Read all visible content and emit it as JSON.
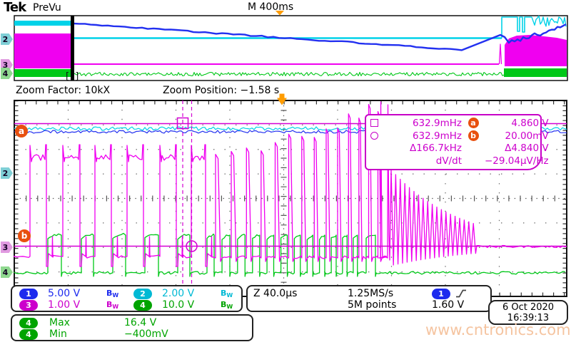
{
  "header": {
    "logo": "Tek",
    "status": "PreVu",
    "main_timebase": "M 400ms"
  },
  "overview": {
    "zoom_window_bracket": "[ ]"
  },
  "zoom_bar": {
    "factor_label": "Zoom Factor:",
    "factor_value": "10kX",
    "position_label": "Zoom Position:",
    "position_value": "−1.58 s"
  },
  "markers": {
    "overview": [
      "2",
      "3",
      "4"
    ],
    "main": [
      "2",
      "3",
      "4"
    ],
    "cursor_a": "a",
    "cursor_b": "b"
  },
  "cursor_readout": {
    "rows": [
      {
        "symbol": "square",
        "freq": "632.9mHz",
        "ref": "a",
        "value": "4.860 V"
      },
      {
        "symbol": "circle",
        "freq": "632.9mHz",
        "ref": "b",
        "value": "20.00mV"
      },
      {
        "symbol": "",
        "freq": "Δ166.7kHz",
        "ref": "",
        "value": "Δ4.840 V"
      },
      {
        "symbol": "",
        "freq": "dV/dt",
        "ref": "",
        "value": "−29.04μV/Hz"
      }
    ]
  },
  "channel_settings": [
    {
      "ch": "1",
      "scale": "5.00 V"
    },
    {
      "ch": "2",
      "scale": "2.00 V"
    },
    {
      "ch": "3",
      "scale": "1.00 V"
    },
    {
      "ch": "4",
      "scale": "10.0 V"
    }
  ],
  "labels": {
    "bw_main": "B",
    "bw_sub": "W"
  },
  "acquisition": {
    "zoom_timebase": "Z 40.0μs",
    "sample_rate": "1.25MS/s",
    "record_length": "5M points",
    "trigger_source": "1",
    "trigger_level": "1.60 V"
  },
  "measurements": [
    {
      "ch": "4",
      "name": "Max",
      "value": "16.4 V"
    },
    {
      "ch": "4",
      "name": "Min",
      "value": "−400mV"
    }
  ],
  "datetime": {
    "date": "6 Oct 2020",
    "time": "16:39:13"
  },
  "watermark": "www.cntronics.com",
  "colors": {
    "ch1": "#2230f0",
    "ch2": "#00d2e8",
    "ch3": "#f000f0",
    "ch4": "#00c818",
    "cursor": "#d400d4",
    "trigger_orange": "#ff9c00",
    "cursor_badge": "#e8500f",
    "grid": "#666666",
    "watermark": "#f5c4a0"
  }
}
